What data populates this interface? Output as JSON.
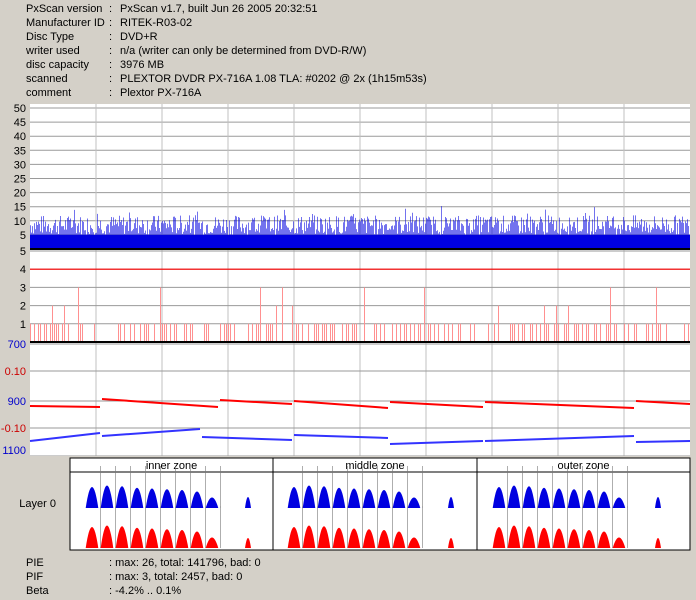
{
  "info": [
    {
      "label": "PxScan version",
      "value": "PxScan v1.7, built Jun 26 2005 20:32:51"
    },
    {
      "label": "Manufacturer ID",
      "value": "RITEK-R03-02"
    },
    {
      "label": "Disc Type",
      "value": "DVD+R"
    },
    {
      "label": "writer used",
      "value": "n/a (writer can only be determined from DVD-R/W)"
    },
    {
      "label": "disc capacity",
      "value": "3976 MB"
    },
    {
      "label": "scanned",
      "value": "PLEXTOR DVDR  PX-716A  1.08 TLA: #0202 @ 2x (1h15m53s)"
    },
    {
      "label": "comment",
      "value": "Plextor PX-716A"
    }
  ],
  "info_colon": ":",
  "colors": {
    "background": "#d4d0c8",
    "plot_bg": "#ffffff",
    "pie": "#0000e0",
    "pif": "#ff0000",
    "jitter": "#3333ff",
    "grid": "#a0a0a0"
  },
  "chart_data": [
    {
      "type": "area",
      "name": "PIE",
      "ylim": [
        0,
        50
      ],
      "tick_labels": [
        "50",
        "45",
        "40",
        "35",
        "30",
        "25",
        "20",
        "15",
        "10",
        "5"
      ],
      "max": 26,
      "typical_peak": 12,
      "baseline": 5
    },
    {
      "type": "bar",
      "name": "PIF",
      "ylim": [
        0,
        5
      ],
      "tick_labels": [
        "5",
        "4",
        "3",
        "2",
        "1"
      ],
      "max": 3,
      "threshold": 4
    },
    {
      "type": "line",
      "name": "jitter and beta",
      "left_ticks": [
        {
          "text": "700",
          "color": "#0000cc"
        },
        {
          "text": "0.10",
          "color": "#cc0000"
        },
        {
          "text": "900",
          "color": "#0000cc"
        },
        {
          "text": "-0.10",
          "color": "#cc0000"
        },
        {
          "text": "1100",
          "color": "#0000cc"
        }
      ],
      "beta_range": [
        -4.2,
        0.1
      ]
    }
  ],
  "zones": {
    "row_label": "Layer 0",
    "headers": [
      "inner zone",
      "middle zone",
      "outer zone"
    ]
  },
  "summary": [
    {
      "label": "PIE",
      "value": ": max: 26, total: 141796, bad: 0"
    },
    {
      "label": "PIF",
      "value": ": max: 3, total: 2457, bad: 0"
    },
    {
      "label": "Beta",
      "value": ": -4.2% .. 0.1%"
    }
  ]
}
